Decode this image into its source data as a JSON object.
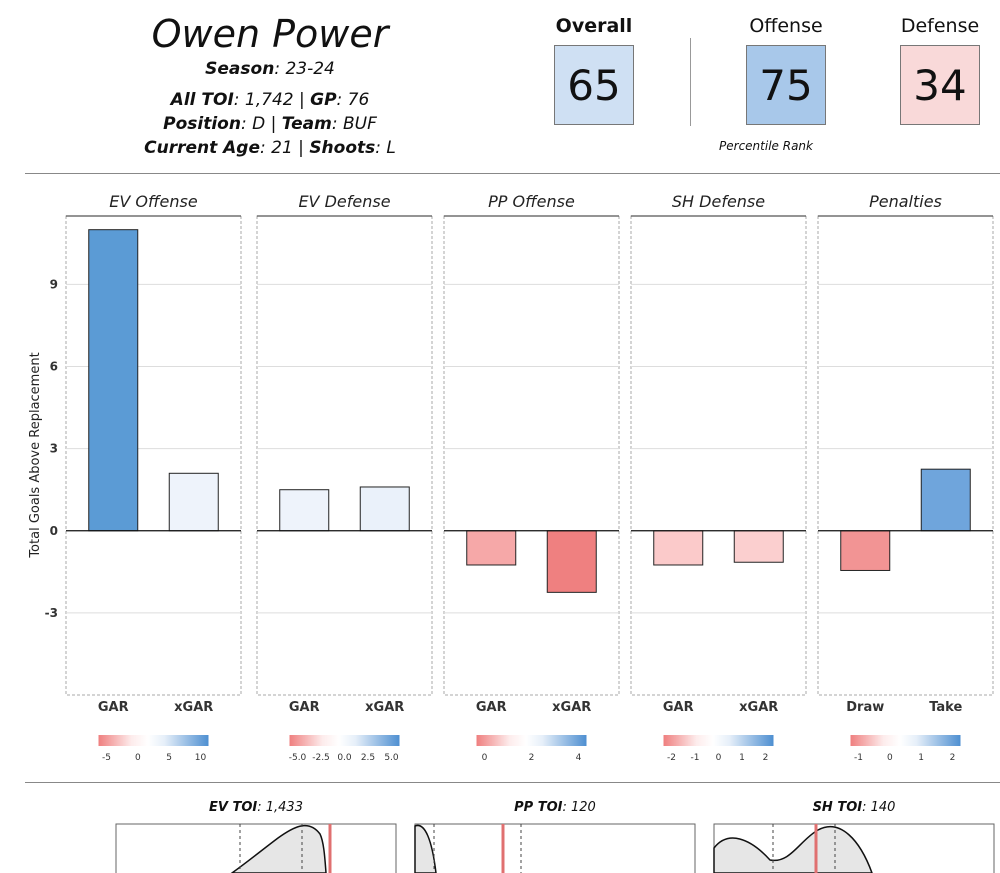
{
  "player": {
    "name": "Owen Power",
    "season_label": "Season",
    "season": ": 23-24",
    "toi_label": "All TOI",
    "toi": ": 1,742 | ",
    "gp_label": "GP",
    "gp": ": 76",
    "position_label": "Position",
    "position": ": D | ",
    "team_label": "Team",
    "team": ": BUF",
    "age_label": "Current Age",
    "age": ": 21 | ",
    "shoots_label": "Shoots",
    "shoots": ": L"
  },
  "ranks": {
    "overall_label": "Overall",
    "overall": "65",
    "offense_label": "Offense",
    "offense": "75",
    "defense_label": "Defense",
    "defense": "34",
    "subtitle": "Percentile Rank",
    "colors": {
      "overall": "#cfe0f3",
      "offense": "#a8c8ea",
      "defense": "#f9d9d9"
    }
  },
  "chart_data": {
    "type": "bar",
    "ylabel": "Total Goals Above Replacement",
    "ylim": [
      -6,
      11.5
    ],
    "yticks": [
      -3,
      0,
      3,
      6,
      9
    ],
    "grid": true,
    "panels": [
      {
        "title": "EV Offense",
        "categories": [
          "GAR",
          "xGAR"
        ],
        "values": [
          11.0,
          2.1
        ],
        "colors": [
          "#5b9bd5",
          "#eef3fb"
        ],
        "legend": {
          "ticks": [
            "-5",
            "0",
            "5",
            "10"
          ]
        }
      },
      {
        "title": "EV Defense",
        "categories": [
          "GAR",
          "xGAR"
        ],
        "values": [
          1.5,
          1.6
        ],
        "colors": [
          "#eef3fb",
          "#eaf1fa"
        ],
        "legend": {
          "ticks": [
            "-5.0",
            "-2.5",
            "0.0",
            "2.5",
            "5.0"
          ]
        }
      },
      {
        "title": "PP Offense",
        "categories": [
          "GAR",
          "xGAR"
        ],
        "values": [
          -1.25,
          -2.25
        ],
        "colors": [
          "#f6a8a8",
          "#ef8080"
        ],
        "legend": {
          "ticks": [
            "0",
            "2",
            "4"
          ]
        }
      },
      {
        "title": "SH Defense",
        "categories": [
          "GAR",
          "xGAR"
        ],
        "values": [
          -1.25,
          -1.15
        ],
        "colors": [
          "#fbcaca",
          "#fbcfcf"
        ],
        "legend": {
          "ticks": [
            "-2",
            "-1",
            "0",
            "1",
            "2"
          ]
        }
      },
      {
        "title": "Penalties",
        "categories": [
          "Draw",
          "Take"
        ],
        "values": [
          -1.45,
          2.25
        ],
        "colors": [
          "#f29494",
          "#6fa5dc"
        ],
        "legend": {
          "ticks": [
            "-1",
            "0",
            "1",
            "2"
          ]
        }
      }
    ]
  },
  "toi": [
    {
      "label": "EV TOI",
      "value": ": 1,433"
    },
    {
      "label": "PP TOI",
      "value": ": 120"
    },
    {
      "label": "SH TOI",
      "value": ": 140"
    }
  ]
}
